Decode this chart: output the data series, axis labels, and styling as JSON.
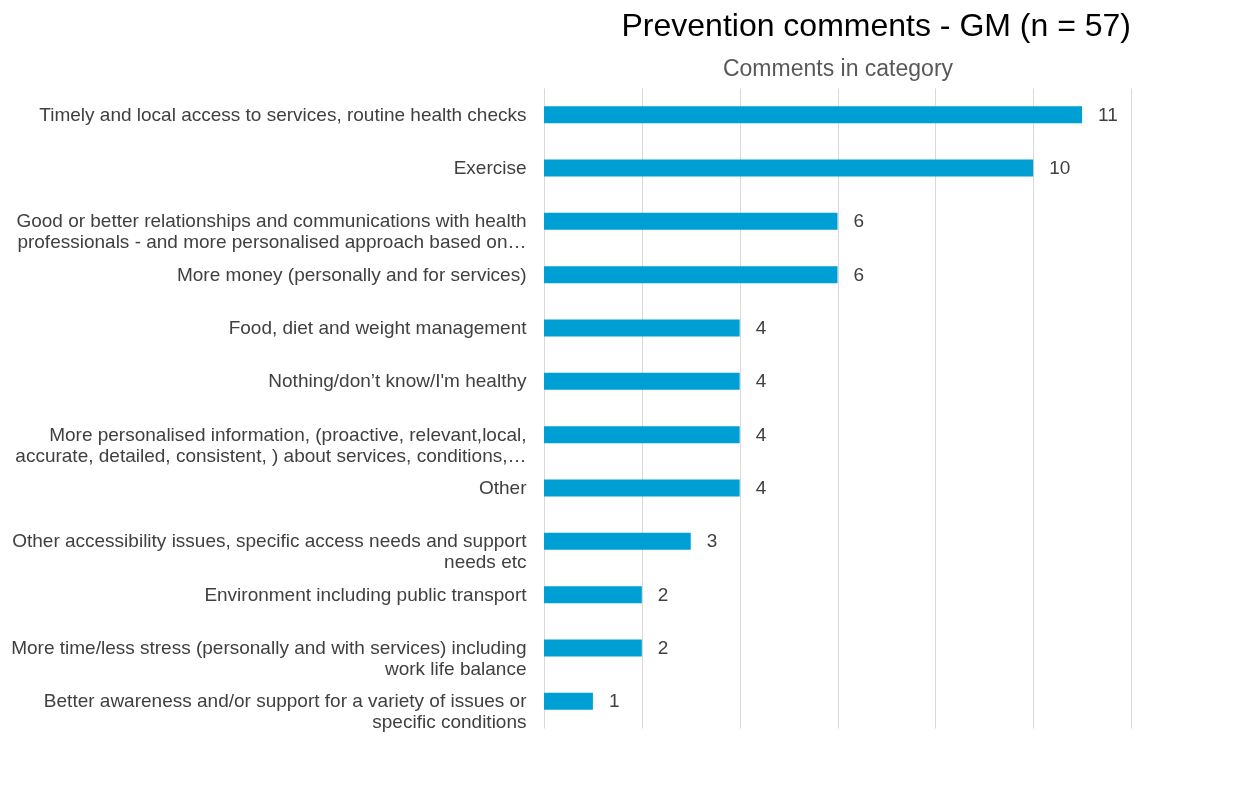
{
  "chart_data": {
    "type": "bar",
    "orientation": "horizontal",
    "title": "Prevention comments - GM (n = 57)",
    "xlabel": "Comments in category",
    "categories": [
      "Timely and local access to services, routine health checks",
      "Exercise",
      "Good or better relationships and communications with health professionals  - and more personalised approach based on…",
      "More money (personally and for services)",
      "Food, diet and weight management",
      "Nothing/don’t know/I'm healthy",
      "More personalised information, (proactive,  relevant,local, accurate, detailed, consistent, ) about services, conditions,…",
      "Other",
      "Other accessibility issues, specific access needs and support needs etc",
      "Environment including public transport",
      "More time/less stress (personally and with services) including work life balance",
      "Better awareness and/or support for a variety of issues or specific conditions"
    ],
    "values": [
      11,
      10,
      6,
      6,
      4,
      4,
      4,
      4,
      3,
      2,
      2,
      1
    ],
    "color": "#009fd3",
    "xlim": [
      0,
      12
    ],
    "xticks": [
      {
        "value": 0,
        "label": null
      },
      {
        "value": 2,
        "label": null
      },
      {
        "value": 4,
        "label": null
      },
      {
        "value": 6,
        "label": null
      },
      {
        "value": 8,
        "label": null
      },
      {
        "value": 10,
        "label": null
      },
      {
        "value": 12,
        "label": null
      }
    ],
    "grid": "x",
    "tick_labels": "y",
    "data_labels": true
  }
}
